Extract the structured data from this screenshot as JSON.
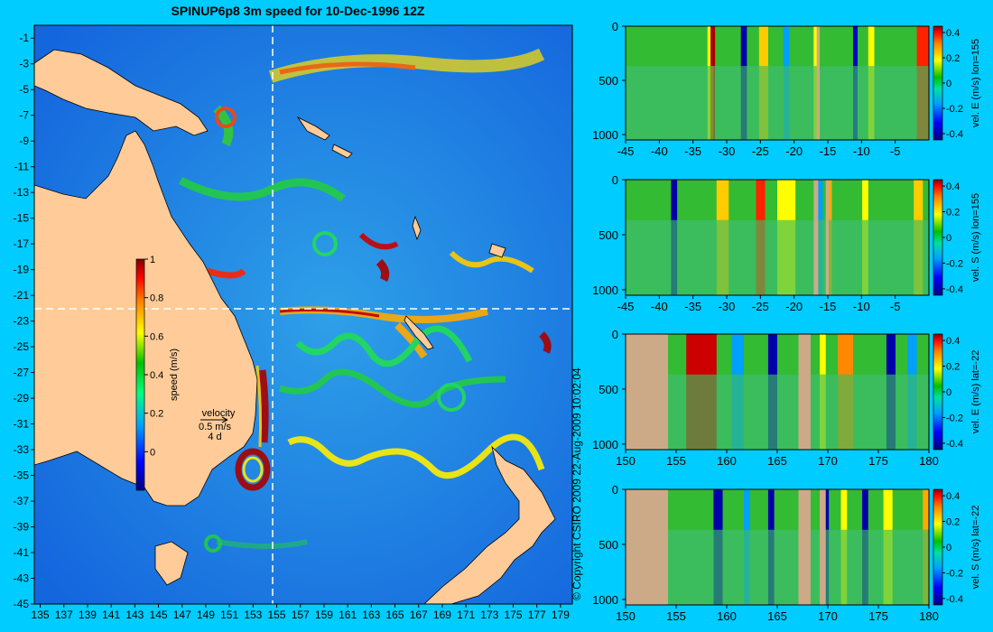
{
  "title": "SPINUP6p8 3m speed for 10-Dec-1996 12Z",
  "copyright": "© Copyright CSIRO 2009    22-Aug-2009 10:02:04",
  "colors": {
    "background": "#00ccff",
    "land": "#ffcc99",
    "seafloor": "#ccaa88",
    "crosshair": "#ffffff"
  },
  "map": {
    "x_ticks": [
      "135",
      "137",
      "139",
      "141",
      "143",
      "145",
      "147",
      "149",
      "151",
      "153",
      "155",
      "157",
      "159",
      "161",
      "163",
      "165",
      "167",
      "169",
      "171",
      "173",
      "175",
      "177",
      "179"
    ],
    "y_ticks": [
      "-1",
      "-3",
      "-5",
      "-7",
      "-9",
      "-11",
      "-13",
      "-15",
      "-17",
      "-19",
      "-21",
      "-23",
      "-25",
      "-27",
      "-29",
      "-31",
      "-33",
      "-35",
      "-37",
      "-39",
      "-41",
      "-43",
      "-45"
    ],
    "xlim": [
      134.5,
      180
    ],
    "ylim": [
      -45,
      0
    ],
    "section_lon": 155,
    "section_lat": -22,
    "colorbar": {
      "label": "speed (m/s)",
      "ticks": [
        "1",
        "0.8",
        "0.6",
        "0.4",
        "0.2",
        "0"
      ],
      "range": [
        -0.2,
        1
      ]
    },
    "velocity_key": {
      "title": "velocity",
      "speed": "0.5 m/s",
      "duration": "4 d"
    }
  },
  "chart_data": [
    {
      "type": "heatmap",
      "title": "SPINUP6p8 3m speed for 10-Dec-1996 12Z",
      "xlabel": "",
      "ylabel": "",
      "xlim": [
        134.5,
        180
      ],
      "ylim": [
        -45,
        0
      ],
      "colorbar_label": "speed (m/s)",
      "colorbar_range": [
        -0.2,
        1
      ],
      "grid": false
    },
    {
      "type": "heatmap",
      "ylabel": "vel. E (m/s) lon=155",
      "x_ticks": [
        "-45",
        "-40",
        "-35",
        "-30",
        "-25",
        "-20",
        "-15",
        "-10",
        "-5"
      ],
      "y_ticks": [
        "0",
        "500",
        "1000"
      ],
      "xlim": [
        -45,
        0
      ],
      "ylim": [
        1050,
        0
      ],
      "colorbar_ticks": [
        "0.4",
        "0.2",
        "0",
        "-0.2",
        "-0.4"
      ],
      "colorbar_range": [
        -0.45,
        0.45
      ]
    },
    {
      "type": "heatmap",
      "ylabel": "vel. S (m/s) lon=155",
      "x_ticks": [
        "-45",
        "-40",
        "-35",
        "-30",
        "-25",
        "-20",
        "-15",
        "-10",
        "-5"
      ],
      "y_ticks": [
        "0",
        "500",
        "1000"
      ],
      "xlim": [
        -45,
        0
      ],
      "ylim": [
        1050,
        0
      ],
      "colorbar_ticks": [
        "0.4",
        "0.2",
        "0",
        "-0.2",
        "-0.4"
      ],
      "colorbar_range": [
        -0.45,
        0.45
      ]
    },
    {
      "type": "heatmap",
      "ylabel": "vel. E (m/s) lat=-22",
      "x_ticks": [
        "150",
        "155",
        "160",
        "165",
        "170",
        "175",
        "180"
      ],
      "y_ticks": [
        "0",
        "500",
        "1000"
      ],
      "xlim": [
        150,
        180
      ],
      "ylim": [
        1050,
        0
      ],
      "colorbar_ticks": [
        "0.4",
        "0.2",
        "0",
        "-0.2",
        "-0.4"
      ],
      "colorbar_range": [
        -0.45,
        0.45
      ]
    },
    {
      "type": "heatmap",
      "ylabel": "vel. S (m/s) lat=-22",
      "x_ticks": [
        "150",
        "155",
        "160",
        "165",
        "170",
        "175",
        "180"
      ],
      "y_ticks": [
        "0",
        "500",
        "1000"
      ],
      "xlim": [
        150,
        180
      ],
      "ylim": [
        1050,
        0
      ],
      "colorbar_ticks": [
        "0.4",
        "0.2",
        "0",
        "-0.2",
        "-0.4"
      ],
      "colorbar_range": [
        -0.45,
        0.45
      ]
    }
  ]
}
